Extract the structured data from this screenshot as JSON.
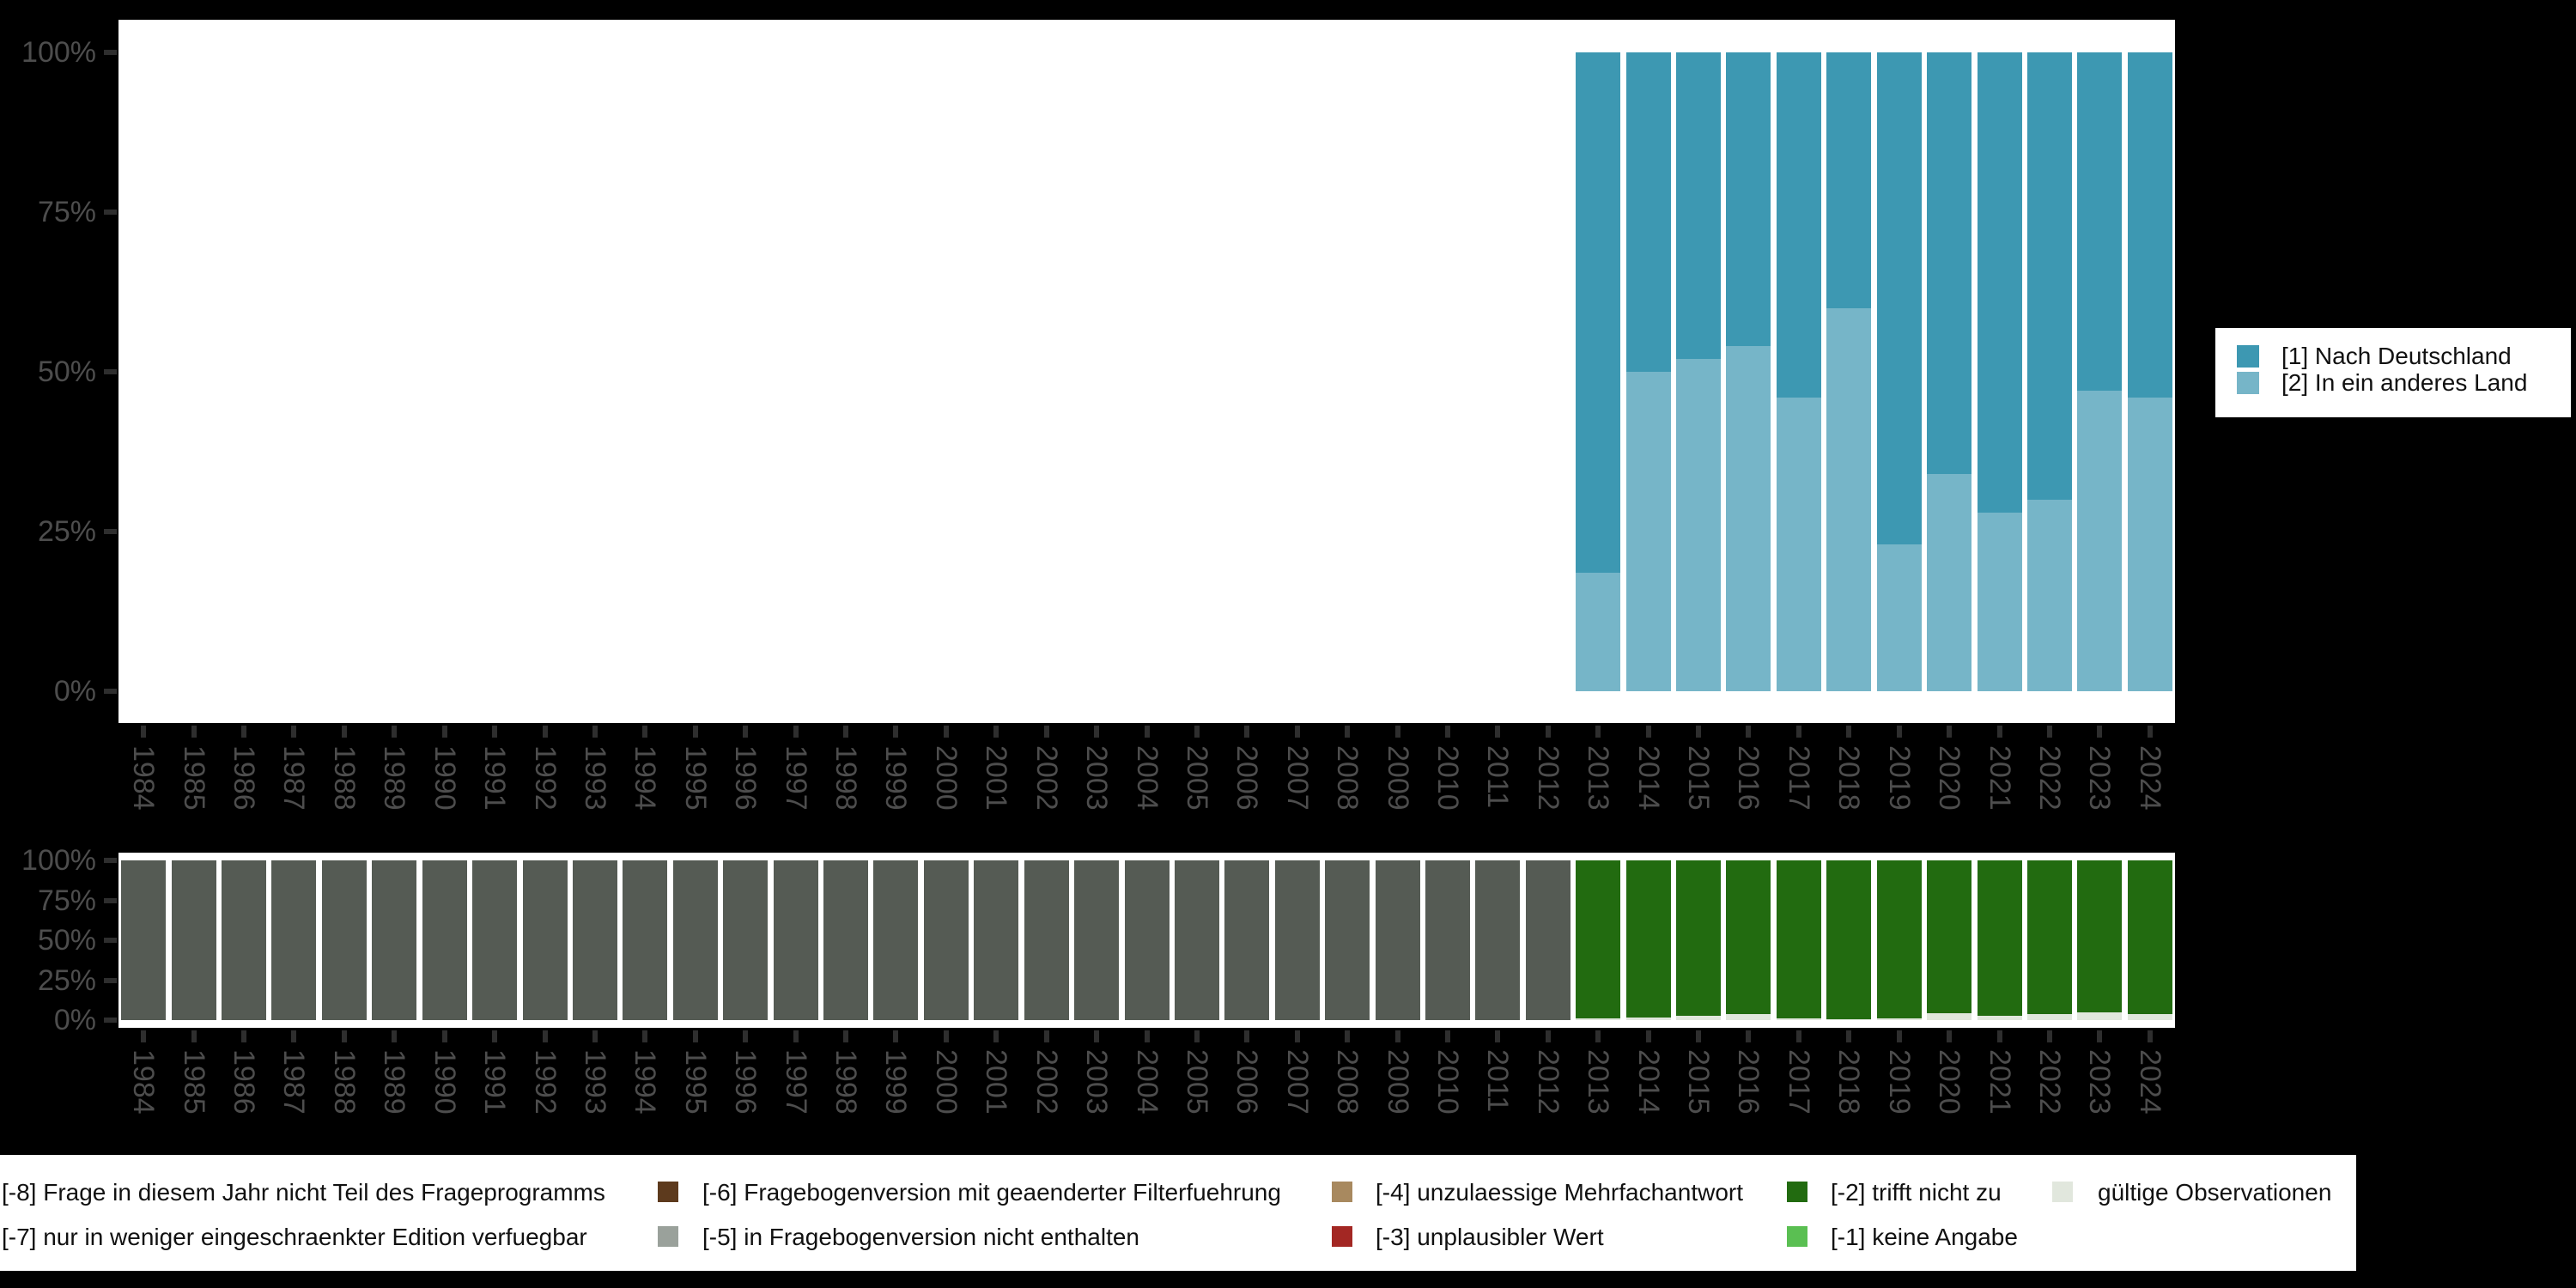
{
  "colors": {
    "background": "#000000",
    "panel_background": "#ffffff",
    "axis_tick": "#2e2e2e",
    "axis_label": "#4d4d4d",
    "legend_text": "#111111"
  },
  "chart_data": [
    {
      "name": "valid-answers",
      "type": "bar",
      "stacked": true,
      "grid": false,
      "legend_position": "right",
      "ylim": [
        0,
        100
      ],
      "ytick_labels": [
        "0%",
        "25%",
        "50%",
        "75%",
        "100%"
      ],
      "categories": [
        "1984",
        "1985",
        "1986",
        "1987",
        "1988",
        "1989",
        "1990",
        "1991",
        "1992",
        "1993",
        "1994",
        "1995",
        "1996",
        "1997",
        "1998",
        "1999",
        "2000",
        "2001",
        "2002",
        "2003",
        "2004",
        "2005",
        "2006",
        "2007",
        "2008",
        "2009",
        "2010",
        "2011",
        "2012",
        "2013",
        "2014",
        "2015",
        "2016",
        "2017",
        "2018",
        "2019",
        "2020",
        "2021",
        "2022",
        "2023",
        "2024"
      ],
      "series": [
        {
          "name": "[1] Nach Deutschland",
          "color": "#3d98b2",
          "values": [
            null,
            null,
            null,
            null,
            null,
            null,
            null,
            null,
            null,
            null,
            null,
            null,
            null,
            null,
            null,
            null,
            null,
            null,
            null,
            null,
            null,
            null,
            null,
            null,
            null,
            null,
            null,
            null,
            null,
            81.5,
            50,
            48,
            46,
            54,
            40,
            77,
            66,
            72,
            70,
            53,
            54
          ]
        },
        {
          "name": "[2] In ein anderes Land",
          "color": "#76b5c8",
          "values": [
            null,
            null,
            null,
            null,
            null,
            null,
            null,
            null,
            null,
            null,
            null,
            null,
            null,
            null,
            null,
            null,
            null,
            null,
            null,
            null,
            null,
            null,
            null,
            null,
            null,
            null,
            null,
            null,
            null,
            18.5,
            50,
            52,
            54,
            46,
            60,
            23,
            34,
            28,
            30,
            47,
            46
          ]
        }
      ]
    },
    {
      "name": "missing-overview",
      "type": "bar",
      "stacked": true,
      "grid": false,
      "legend_position": "bottom",
      "ylim": [
        0,
        100
      ],
      "ytick_labels": [
        "0%",
        "25%",
        "50%",
        "75%",
        "100%"
      ],
      "categories": [
        "1984",
        "1985",
        "1986",
        "1987",
        "1988",
        "1989",
        "1990",
        "1991",
        "1992",
        "1993",
        "1994",
        "1995",
        "1996",
        "1997",
        "1998",
        "1999",
        "2000",
        "2001",
        "2002",
        "2003",
        "2004",
        "2005",
        "2006",
        "2007",
        "2008",
        "2009",
        "2010",
        "2011",
        "2012",
        "2013",
        "2014",
        "2015",
        "2016",
        "2017",
        "2018",
        "2019",
        "2020",
        "2021",
        "2022",
        "2023",
        "2024"
      ],
      "series": [
        {
          "name": "[-8] Frage in diesem Jahr nicht Teil des Frageprogramms",
          "color": "#555b54",
          "values": [
            100,
            100,
            100,
            100,
            100,
            100,
            100,
            100,
            100,
            100,
            100,
            100,
            100,
            100,
            100,
            100,
            100,
            100,
            100,
            100,
            100,
            100,
            100,
            100,
            100,
            100,
            100,
            100,
            100,
            0,
            0,
            0,
            0,
            0,
            0,
            0,
            0,
            0,
            0,
            0,
            0
          ]
        },
        {
          "name": "[-2] trifft nicht zu",
          "color": "#226b10",
          "values": [
            0,
            0,
            0,
            0,
            0,
            0,
            0,
            0,
            0,
            0,
            0,
            0,
            0,
            0,
            0,
            0,
            0,
            0,
            0,
            0,
            0,
            0,
            0,
            0,
            0,
            0,
            0,
            0,
            0,
            99,
            98.5,
            97.5,
            96,
            99,
            99.5,
            99,
            95.5,
            97.5,
            96.5,
            95,
            96.5
          ]
        },
        {
          "name": "gültige Observationen",
          "color": "#e1e7dd",
          "values": [
            0,
            0,
            0,
            0,
            0,
            0,
            0,
            0,
            0,
            0,
            0,
            0,
            0,
            0,
            0,
            0,
            0,
            0,
            0,
            0,
            0,
            0,
            0,
            0,
            0,
            0,
            0,
            0,
            0,
            1,
            1.5,
            2.5,
            4,
            1,
            0.5,
            1,
            4.5,
            2.5,
            3.5,
            5,
            3.5
          ]
        }
      ]
    }
  ],
  "bottom_legend": {
    "columns": [
      {
        "entries": [
          {
            "label": "[-8] Frage in diesem Jahr nicht Teil des Frageprogramms",
            "color": null,
            "key_visible": false
          },
          {
            "label": "[-7] nur in weniger eingeschraenkter Edition verfuegbar",
            "color": null,
            "key_visible": false
          }
        ]
      },
      {
        "entries": [
          {
            "label": "[-6] Fragebogenversion mit geaenderter Filterfuehrung",
            "color": "#5d3a1d",
            "key_visible": true
          },
          {
            "label": "[-5] in Fragebogenversion nicht enthalten",
            "color": "#9aa19b",
            "key_visible": true
          }
        ]
      },
      {
        "entries": [
          {
            "label": "[-4] unzulaessige Mehrfachantwort",
            "color": "#a8895f",
            "key_visible": true
          },
          {
            "label": "[-3] unplausibler Wert",
            "color": "#a32723",
            "key_visible": true
          }
        ]
      },
      {
        "entries": [
          {
            "label": "[-2] trifft nicht zu",
            "color": "#226b10",
            "key_visible": true
          },
          {
            "label": "[-1] keine Angabe",
            "color": "#5abf52",
            "key_visible": true
          }
        ]
      },
      {
        "entries": [
          {
            "label": "gültige Observationen",
            "color": "#e1e7dd",
            "key_visible": true
          }
        ]
      }
    ]
  }
}
